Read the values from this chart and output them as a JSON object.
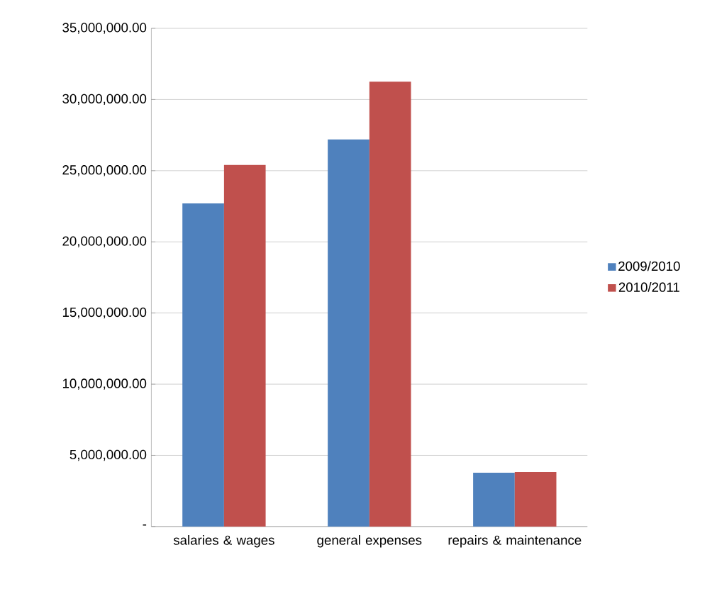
{
  "chart_data": {
    "type": "bar",
    "categories": [
      "salaries & wages",
      "general expenses",
      "repairs & maintenance"
    ],
    "series": [
      {
        "name": "2009/2010",
        "color": "#4f81bd",
        "values": [
          22700000,
          27200000,
          3780000
        ]
      },
      {
        "name": "2010/2011",
        "color": "#c0504d",
        "values": [
          25400000,
          31250000,
          3830000
        ]
      }
    ],
    "ylim": [
      0,
      35000000
    ],
    "yticks": [
      {
        "value": 0,
        "label": "-"
      },
      {
        "value": 5000000,
        "label": "5,000,000.00"
      },
      {
        "value": 10000000,
        "label": "10,000,000.00"
      },
      {
        "value": 15000000,
        "label": "15,000,000.00"
      },
      {
        "value": 20000000,
        "label": "20,000,000.00"
      },
      {
        "value": 25000000,
        "label": "25,000,000.00"
      },
      {
        "value": 30000000,
        "label": "30,000,000.00"
      },
      {
        "value": 35000000,
        "label": "35,000,000.00"
      }
    ],
    "grid": "y",
    "legend": "right"
  }
}
